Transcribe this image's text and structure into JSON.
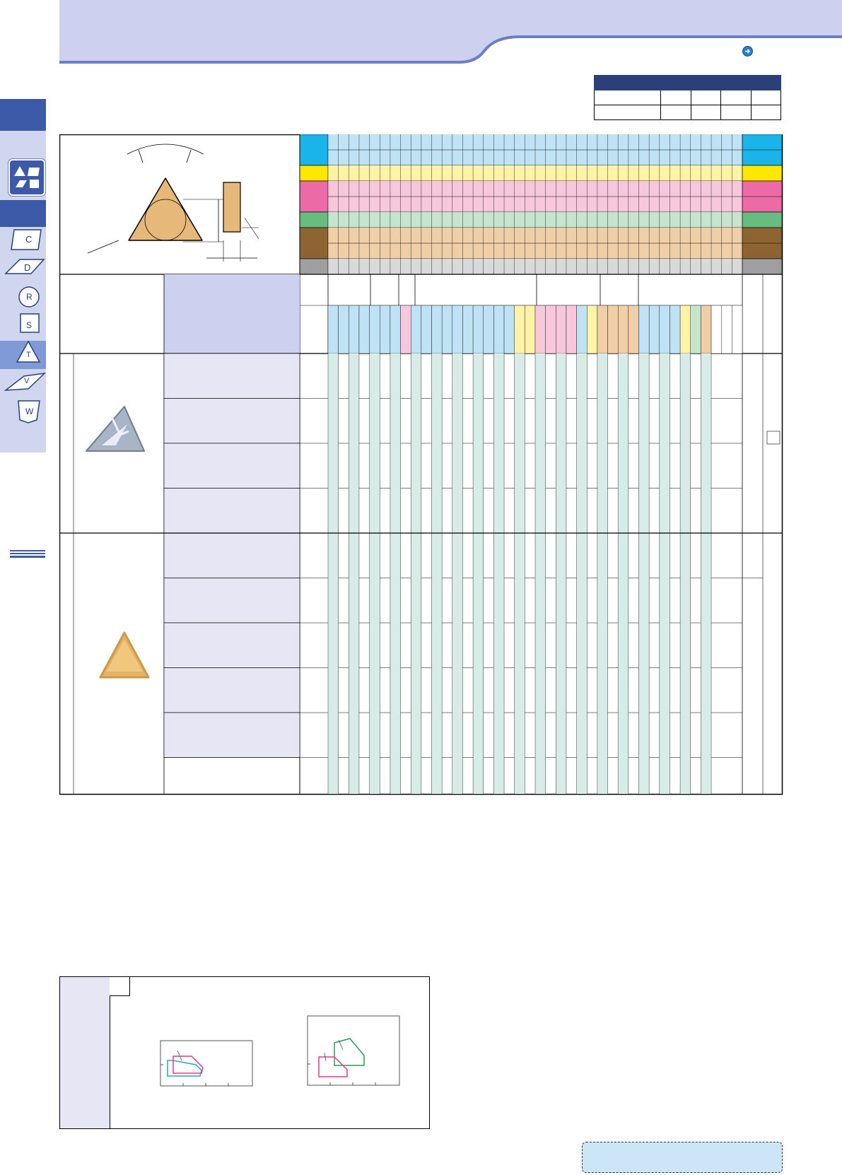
{
  "header": {
    "nav_icon": "circle-arrow-right-icon",
    "band_color": "#cdd0ee"
  },
  "side_tabs": [
    {
      "id": "tab-combo",
      "letter": "",
      "icon": "insert-shapes-icon",
      "active": false
    },
    {
      "id": "tab-c",
      "letter": "C",
      "icon": "rhombus-80-icon",
      "active": false
    },
    {
      "id": "tab-d",
      "letter": "D",
      "icon": "rhombus-55-icon",
      "active": false
    },
    {
      "id": "tab-r",
      "letter": "R",
      "icon": "round-icon",
      "active": false
    },
    {
      "id": "tab-s",
      "letter": "S",
      "icon": "square-icon",
      "active": false
    },
    {
      "id": "tab-t",
      "letter": "T",
      "icon": "triangle-icon",
      "active": true
    },
    {
      "id": "tab-v",
      "letter": "V",
      "icon": "rhombus-35-icon",
      "active": false
    },
    {
      "id": "tab-w",
      "letter": "W",
      "icon": "trigon-icon",
      "active": false
    }
  ],
  "material_colors": {
    "P": "#1ab4ea",
    "M": "#ffe800",
    "K": "#ec6aa6",
    "N": "#67bd80",
    "S": "#8e6532",
    "H": "#9f9f9f",
    "P_light": "#bfe3f5",
    "M_light": "#fff3a8",
    "K_light": "#f7c7dc",
    "N_light": "#c6e5cd",
    "S_light": "#f0cfa8",
    "H_light": "#d9d9d9",
    "stock": "#d7ece7"
  },
  "products": [
    {
      "icon": "grey-triangle-insert-icon",
      "rows": 4
    },
    {
      "icon": "gold-triangle-insert-icon",
      "rows": 5
    }
  ],
  "diagram": {
    "icons": [
      "triangle-insert-diagram-icon",
      "insert-side-view-icon"
    ]
  },
  "chip_breaker_box": {
    "series_colors": [
      "#2aa3d8",
      "#e0388a",
      "#2c9a5a"
    ]
  }
}
